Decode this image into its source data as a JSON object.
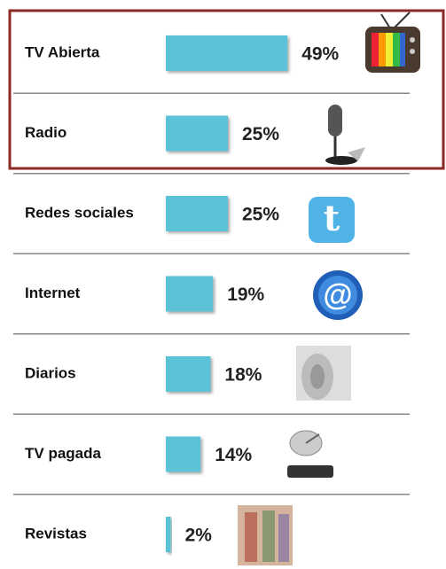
{
  "chart_data": {
    "type": "bar",
    "orientation": "horizontal",
    "categories": [
      "TV Abierta",
      "Radio",
      "Redes sociales",
      "Internet",
      "Diarios",
      "TV pagada",
      "Revistas"
    ],
    "values": [
      49,
      25,
      25,
      19,
      18,
      14,
      2
    ],
    "value_labels": [
      "49%",
      "25%",
      "25%",
      "19%",
      "18%",
      "14%",
      "2%"
    ],
    "color": "#5cc2d8"
  }
}
